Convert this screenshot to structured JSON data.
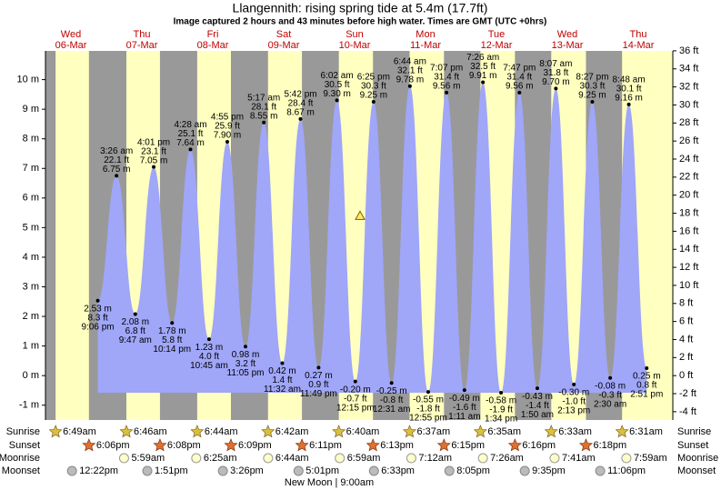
{
  "chart_data": {
    "type": "tide",
    "title": "Llangennith: rising  spring tide at 5.4m (17.7ft)",
    "subtitle": "Image captured 2 hours and 43 minutes before high water. Times are GMT (UTC +0hrs)",
    "current_level": 5.4,
    "ylim": [
      -1.5,
      10.97
    ],
    "yticks": [
      {
        "value": -1,
        "label": "-1 m"
      },
      {
        "value": 0,
        "label": "0 m"
      },
      {
        "value": 1,
        "label": "1 m"
      },
      {
        "value": 2,
        "label": "2 m"
      },
      {
        "value": 3,
        "label": "3 m"
      },
      {
        "value": 4,
        "label": "4 m"
      },
      {
        "value": 5,
        "label": "5 m"
      },
      {
        "value": 6,
        "label": "6 m"
      },
      {
        "value": 7,
        "label": "7 m"
      },
      {
        "value": 8,
        "label": "8 m"
      },
      {
        "value": 9,
        "label": "9 m"
      },
      {
        "value": 10,
        "label": "10 m"
      }
    ],
    "y2lim": [
      -4.92,
      35.99
    ],
    "y2ticks": [
      {
        "value": -4,
        "label": "-4 ft"
      },
      {
        "value": -2,
        "label": "-2 ft"
      },
      {
        "value": 0,
        "label": "0 ft"
      },
      {
        "value": 2,
        "label": "2 ft"
      },
      {
        "value": 4,
        "label": "4 ft"
      },
      {
        "value": 6,
        "label": "6 ft"
      },
      {
        "value": 8,
        "label": "8 ft"
      },
      {
        "value": 10,
        "label": "10 ft"
      },
      {
        "value": 12,
        "label": "12 ft"
      },
      {
        "value": 14,
        "label": "14 ft"
      },
      {
        "value": 16,
        "label": "16 ft"
      },
      {
        "value": 18,
        "label": "18 ft"
      },
      {
        "value": 20,
        "label": "20 ft"
      },
      {
        "value": 22,
        "label": "22 ft"
      },
      {
        "value": 24,
        "label": "24 ft"
      },
      {
        "value": 26,
        "label": "26 ft"
      },
      {
        "value": 28,
        "label": "28 ft"
      },
      {
        "value": 30,
        "label": "30 ft"
      },
      {
        "value": 32,
        "label": "32 ft"
      },
      {
        "value": 34,
        "label": "34 ft"
      },
      {
        "value": 36,
        "label": "36 ft"
      }
    ],
    "color": "#a0a6f8",
    "row_labels": [
      "Sunrise",
      "Sunset",
      "Moonrise",
      "Moonset"
    ],
    "moon_phase": "New Moon | 9:00am",
    "days": [
      {
        "weekday": "Wed",
        "date": "06-Mar",
        "sunrise": "6:49am",
        "sunset": "6:06pm",
        "moonrise": null,
        "moonset": "12:22pm",
        "tides": [
          {
            "time": "9:06 pm",
            "value": 2.53,
            "value_label": "2.53 m",
            "ft": "8.3 ft"
          }
        ]
      },
      {
        "weekday": "Thu",
        "date": "07-Mar",
        "sunrise": "6:46am",
        "sunset": "6:08pm",
        "moonrise": "5:59am",
        "moonset": "1:51pm",
        "tides": [
          {
            "time": "3:26 am",
            "value": 6.75,
            "value_label": "6.75 m",
            "ft": "22.1 ft"
          },
          {
            "time": "9:47 am",
            "value": 2.08,
            "value_label": "2.08 m",
            "ft": "6.8 ft"
          },
          {
            "time": "4:01 pm",
            "value": 7.05,
            "value_label": "7.05 m",
            "ft": "23.1 ft"
          },
          {
            "time": "10:14 pm",
            "value": 1.78,
            "value_label": "1.78 m",
            "ft": "5.8 ft"
          }
        ]
      },
      {
        "weekday": "Fri",
        "date": "08-Mar",
        "sunrise": "6:44am",
        "sunset": "6:09pm",
        "moonrise": "6:25am",
        "moonset": "3:26pm",
        "tides": [
          {
            "time": "4:28 am",
            "value": 7.64,
            "value_label": "7.64 m",
            "ft": "25.1 ft"
          },
          {
            "time": "10:45 am",
            "value": 1.23,
            "value_label": "1.23 m",
            "ft": "4.0 ft"
          },
          {
            "time": "4:55 pm",
            "value": 7.9,
            "value_label": "7.90 m",
            "ft": "25.9 ft"
          },
          {
            "time": "11:05 pm",
            "value": 0.98,
            "value_label": "0.98 m",
            "ft": "3.2 ft"
          }
        ]
      },
      {
        "weekday": "Sat",
        "date": "09-Mar",
        "sunrise": "6:42am",
        "sunset": "6:11pm",
        "moonrise": "6:44am",
        "moonset": "5:01pm",
        "tides": [
          {
            "time": "5:17 am",
            "value": 8.55,
            "value_label": "8.55 m",
            "ft": "28.1 ft"
          },
          {
            "time": "11:32 am",
            "value": 0.42,
            "value_label": "0.42 m",
            "ft": "1.4 ft"
          },
          {
            "time": "5:42 pm",
            "value": 8.67,
            "value_label": "8.67 m",
            "ft": "28.4 ft"
          },
          {
            "time": "11:49 pm",
            "value": 0.27,
            "value_label": "0.27 m",
            "ft": "0.9 ft"
          }
        ]
      },
      {
        "weekday": "Sun",
        "date": "10-Mar",
        "sunrise": "6:40am",
        "sunset": "6:13pm",
        "moonrise": "6:59am",
        "moonset": "6:33pm",
        "tides": [
          {
            "time": "6:02 am",
            "value": 9.3,
            "value_label": "9.30 m",
            "ft": "30.5 ft"
          },
          {
            "time": "12:15 pm",
            "value": -0.2,
            "value_label": "-0.20 m",
            "ft": "-0.7 ft"
          },
          {
            "time": "6:25 pm",
            "value": 9.25,
            "value_label": "9.25 m",
            "ft": "30.3 ft"
          }
        ]
      },
      {
        "weekday": "Mon",
        "date": "11-Mar",
        "sunrise": "6:37am",
        "sunset": "6:15pm",
        "moonrise": "7:12am",
        "moonset": "8:05pm",
        "tides": [
          {
            "time": "12:31 am",
            "value": -0.25,
            "value_label": "-0.25 m",
            "ft": "-0.8 ft"
          },
          {
            "time": "6:44 am",
            "value": 9.78,
            "value_label": "9.78 m",
            "ft": "32.1 ft"
          },
          {
            "time": "12:55 pm",
            "value": -0.55,
            "value_label": "-0.55 m",
            "ft": "-1.8 ft"
          },
          {
            "time": "7:07 pm",
            "value": 9.56,
            "value_label": "9.56 m",
            "ft": "31.4 ft"
          }
        ]
      },
      {
        "weekday": "Tue",
        "date": "12-Mar",
        "sunrise": "6:35am",
        "sunset": "6:16pm",
        "moonrise": "7:26am",
        "moonset": "9:35pm",
        "tides": [
          {
            "time": "1:11 am",
            "value": -0.49,
            "value_label": "-0.49 m",
            "ft": "-1.6 ft"
          },
          {
            "time": "7:26 am",
            "value": 9.91,
            "value_label": "9.91 m",
            "ft": "32.5 ft"
          },
          {
            "time": "1:34 pm",
            "value": -0.58,
            "value_label": "-0.58 m",
            "ft": "-1.9 ft"
          },
          {
            "time": "7:47 pm",
            "value": 9.56,
            "value_label": "9.56 m",
            "ft": "31.4 ft"
          }
        ]
      },
      {
        "weekday": "Wed",
        "date": "13-Mar",
        "sunrise": "6:33am",
        "sunset": "6:18pm",
        "moonrise": "7:41am",
        "moonset": "11:06pm",
        "tides": [
          {
            "time": "1:50 am",
            "value": -0.43,
            "value_label": "-0.43 m",
            "ft": "-1.4 ft"
          },
          {
            "time": "8:07 am",
            "value": 9.7,
            "value_label": "9.70 m",
            "ft": "31.8 ft"
          },
          {
            "time": "2:13 pm",
            "value": -0.3,
            "value_label": "-0.30 m",
            "ft": "-1.0 ft"
          },
          {
            "time": "8:27 pm",
            "value": 9.25,
            "value_label": "9.25 m",
            "ft": "30.3 ft"
          }
        ]
      },
      {
        "weekday": "Thu",
        "date": "14-Mar",
        "sunrise": "6:31am",
        "sunset": null,
        "moonrise": "7:59am",
        "moonset": null,
        "tides": [
          {
            "time": "2:30 am",
            "value": -0.08,
            "value_label": "-0.08 m",
            "ft": "-0.3 ft"
          },
          {
            "time": "8:48 am",
            "value": 9.16,
            "value_label": "9.16 m",
            "ft": "30.1 ft"
          },
          {
            "time": "2:51 pm",
            "value": 0.25,
            "value_label": "0.25 m",
            "ft": "0.8 ft"
          }
        ]
      }
    ]
  }
}
